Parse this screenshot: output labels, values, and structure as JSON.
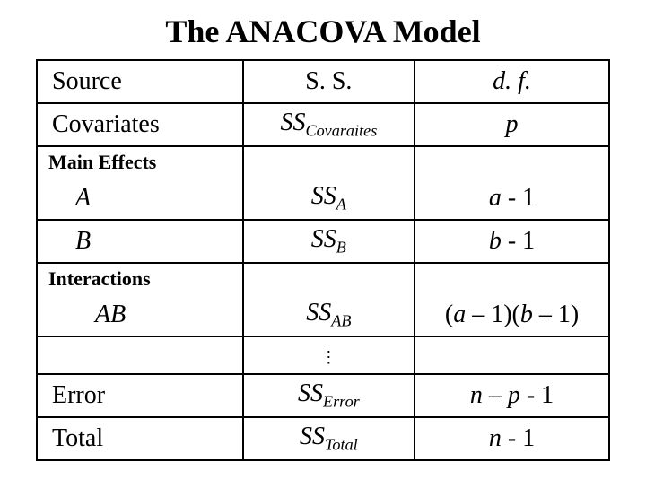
{
  "title": "The ANACOVA Model",
  "table": {
    "border_color": "#000000",
    "background_color": "#ffffff",
    "text_color": "#000000",
    "font_family": "Times New Roman",
    "title_fontsize": 36,
    "cell_fontsize": 28,
    "section_fontsize": 22,
    "col_widths_pct": [
      36,
      30,
      34
    ],
    "headers": {
      "source": "Source",
      "ss": "S. S.",
      "df": "d. f."
    },
    "covariates_row": {
      "label": "Covariates",
      "ss_prefix": "SS",
      "ss_sub": "Covaraites",
      "df": "p"
    },
    "sections": {
      "main_effects": "Main Effects",
      "interactions": "Interactions"
    },
    "rows": {
      "A": {
        "label": "A",
        "ss_prefix": "SS",
        "ss_sub": "A",
        "df_var": "a",
        "df_rest": " - 1"
      },
      "B": {
        "label": "B",
        "ss_prefix": "SS",
        "ss_sub": "B",
        "df_var": "b",
        "df_rest": " - 1"
      },
      "AB": {
        "label": "AB",
        "ss_prefix": "SS",
        "ss_sub": "AB",
        "df_open": "(",
        "df_a": "a",
        "df_mid1": " – 1)(",
        "df_b": "b",
        "df_close": " – 1)"
      },
      "Error": {
        "label": "Error",
        "ss_prefix": "SS",
        "ss_sub": "Error",
        "df_n": "n",
        "df_mid": " – ",
        "df_p": "p ",
        "df_rest": "- 1"
      },
      "Total": {
        "label": "Total",
        "ss_prefix": "SS",
        "ss_sub": "Total",
        "df_n": "n",
        "df_rest": " - 1"
      }
    }
  }
}
